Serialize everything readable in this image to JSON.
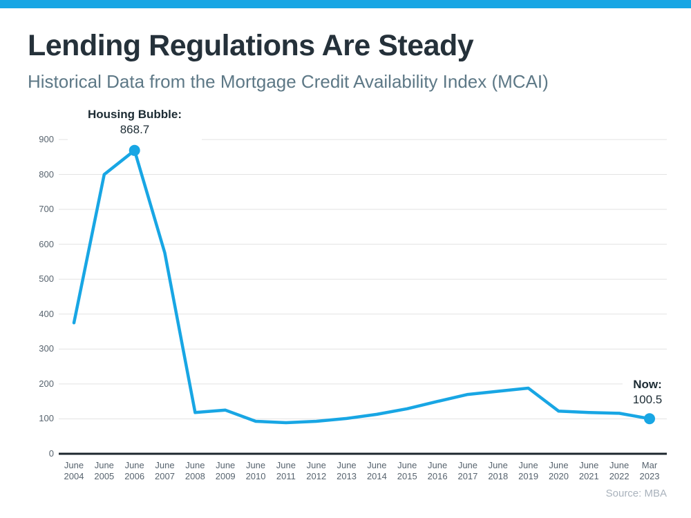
{
  "page": {
    "title": "Lending Regulations Are Steady",
    "subtitle": "Historical Data from the Mortgage Credit Availability Index (MCAI)",
    "source": "Source: MBA"
  },
  "colors": {
    "accent": "#18a6e4",
    "title_text": "#25313a",
    "subtitle_text": "#5d7886",
    "axis_label": "#57636e",
    "gridline": "#e3e3e3",
    "axis_line": "#1c262d",
    "annotation_text": "#1c2b33",
    "source_text": "#a9b2bc"
  },
  "annotations": {
    "peak_label": "Housing Bubble:",
    "peak_value": "868.7",
    "now_label": "Now:",
    "now_value": "100.5"
  },
  "chart_data": {
    "type": "line",
    "title": "Lending Regulations Are Steady",
    "subtitle": "Historical Data from the Mortgage Credit Availability Index (MCAI)",
    "xlabel": "",
    "ylabel": "",
    "x_labels": [
      "June 2004",
      "June 2005",
      "June 2006",
      "June 2007",
      "June 2008",
      "June 2009",
      "June 2010",
      "June 2011",
      "June 2012",
      "June 2013",
      "June 2014",
      "June 2015",
      "June 2016",
      "June 2017",
      "June 2018",
      "June 2019",
      "June 2020",
      "June 2021",
      "June 2022",
      "Mar 2023"
    ],
    "values": [
      375,
      800,
      868.7,
      575,
      118,
      125,
      93,
      89,
      93,
      101,
      113,
      129,
      150,
      170,
      179,
      188,
      122,
      118,
      116,
      100.5
    ],
    "ylim": [
      0,
      900
    ],
    "yticks": [
      0,
      100,
      200,
      300,
      400,
      500,
      600,
      700,
      800,
      900
    ],
    "grid": true,
    "legend_position": "none",
    "line_color": "#18a6e4",
    "marker_points": [
      {
        "index": 2,
        "label": "Housing Bubble:",
        "value_text": "868.7"
      },
      {
        "index": 19,
        "label": "Now:",
        "value_text": "100.5"
      }
    ],
    "source": "Source: MBA"
  }
}
